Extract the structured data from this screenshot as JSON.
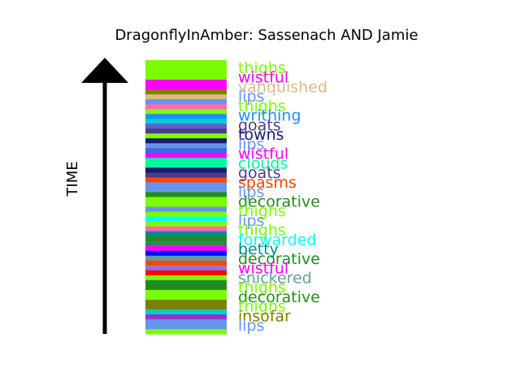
{
  "chart_data": {
    "type": "bar",
    "title": "DragonflyInAmber: Sassenach AND Jamie",
    "ylabel": "TIME",
    "xlabel": "",
    "stripes": [
      {
        "color": "#7cfc00"
      },
      {
        "color": "#7cfc00"
      },
      {
        "color": "#7cfc00"
      },
      {
        "color": "#7cfc00"
      },
      {
        "color": "#ff00ff"
      },
      {
        "color": "#ff00ff"
      },
      {
        "color": "#808000"
      },
      {
        "color": "#deb887"
      },
      {
        "color": "#6495ed"
      },
      {
        "color": "#ff69b4"
      },
      {
        "color": "#7cfc00"
      },
      {
        "color": "#1e90ff"
      },
      {
        "color": "#00ced1"
      },
      {
        "color": "#6a5acd"
      },
      {
        "color": "#483d8b"
      },
      {
        "color": "#7cfc00"
      },
      {
        "color": "#191970"
      },
      {
        "color": "#6495ed"
      },
      {
        "color": "#4169e1"
      },
      {
        "color": "#ff00ff"
      },
      {
        "color": "#00fa9a"
      },
      {
        "color": "#00fa9a"
      },
      {
        "color": "#191970"
      },
      {
        "color": "#483d8b"
      },
      {
        "color": "#ff4500"
      },
      {
        "color": "#6495ed"
      },
      {
        "color": "#6495ed"
      },
      {
        "color": "#228b22"
      },
      {
        "color": "#7cfc00"
      },
      {
        "color": "#7cfc00"
      },
      {
        "color": "#6495ed"
      },
      {
        "color": "#7cfc00"
      },
      {
        "color": "#00ffff"
      },
      {
        "color": "#7cfc00"
      },
      {
        "color": "#ff69b4"
      },
      {
        "color": "#008b8b"
      },
      {
        "color": "#228b22"
      },
      {
        "color": "#2e8b57"
      },
      {
        "color": "#ff00ff"
      },
      {
        "color": "#0000ff"
      },
      {
        "color": "#5f9ea0"
      },
      {
        "color": "#ff4500"
      },
      {
        "color": "#9370db"
      },
      {
        "color": "#ff0000"
      },
      {
        "color": "#7cfc00"
      },
      {
        "color": "#228b22"
      },
      {
        "color": "#228b22"
      },
      {
        "color": "#7cfc00"
      },
      {
        "color": "#7cfc00"
      },
      {
        "color": "#808000"
      },
      {
        "color": "#808000"
      },
      {
        "color": "#00ced1"
      },
      {
        "color": "#9932cc"
      },
      {
        "color": "#6495ed"
      },
      {
        "color": "#6495ed"
      },
      {
        "color": "#7cfc00"
      }
    ],
    "words": [
      {
        "text": "thighs",
        "color": "#7cfc00"
      },
      {
        "text": "wistful",
        "color": "#ff00ff"
      },
      {
        "text": "vanquished",
        "color": "#deb887"
      },
      {
        "text": "lips",
        "color": "#6495ed"
      },
      {
        "text": "thighs",
        "color": "#7cfc00"
      },
      {
        "text": "writhing",
        "color": "#1e90ff"
      },
      {
        "text": "goats",
        "color": "#483d8b"
      },
      {
        "text": "towns",
        "color": "#191970"
      },
      {
        "text": "lips",
        "color": "#6495ed"
      },
      {
        "text": "wistful",
        "color": "#ff00ff"
      },
      {
        "text": "clouds",
        "color": "#00fa9a"
      },
      {
        "text": "goats",
        "color": "#483d8b"
      },
      {
        "text": "spasms",
        "color": "#ff4500"
      },
      {
        "text": "lips",
        "color": "#6495ed"
      },
      {
        "text": "decorative",
        "color": "#228b22"
      },
      {
        "text": "thighs",
        "color": "#7cfc00"
      },
      {
        "text": "lips",
        "color": "#6495ed"
      },
      {
        "text": "thighs",
        "color": "#7cfc00"
      },
      {
        "text": "forwarded",
        "color": "#00ffff"
      },
      {
        "text": "betty",
        "color": "#008b8b"
      },
      {
        "text": "decorative",
        "color": "#228b22"
      },
      {
        "text": "wistful",
        "color": "#ff00ff"
      },
      {
        "text": "snickered",
        "color": "#5f9ea0"
      },
      {
        "text": "thighs",
        "color": "#7cfc00"
      },
      {
        "text": "decorative",
        "color": "#228b22"
      },
      {
        "text": "thighs",
        "color": "#7cfc00"
      },
      {
        "text": "insofar",
        "color": "#808000"
      },
      {
        "text": "lips",
        "color": "#6495ed"
      }
    ]
  }
}
